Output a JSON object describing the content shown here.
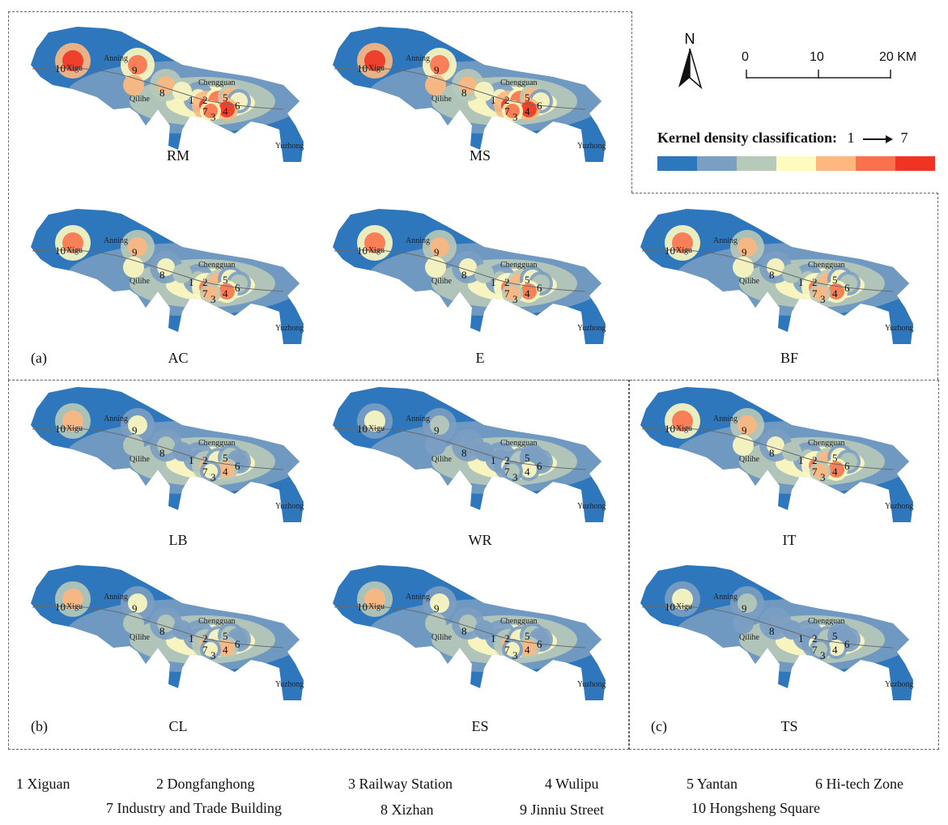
{
  "legend": {
    "title": "Kernel density classification:",
    "from": "1",
    "to": "7",
    "colors": [
      "#2f77bc",
      "#7b9fc2",
      "#b7c9b8",
      "#fffac0",
      "#fdb77f",
      "#f9724d",
      "#ef3423"
    ]
  },
  "scale": {
    "north": "N",
    "ticks": [
      "0",
      "10",
      "20 KM"
    ]
  },
  "groups": {
    "a": "(a)",
    "b": "(b)",
    "c": "(c)"
  },
  "places": {
    "xigu": "Xigu",
    "anning": "Anning",
    "qilihe": "Qilihe",
    "chengguan": "Chengguan",
    "yuzhong": "Yuzhong"
  },
  "maps": [
    {
      "id": "RM",
      "label": "RM",
      "intensity": 6
    },
    {
      "id": "MS",
      "label": "MS",
      "intensity": 6
    },
    {
      "id": "AC",
      "label": "AC",
      "intensity": 5
    },
    {
      "id": "E",
      "label": "E",
      "intensity": 5
    },
    {
      "id": "BF",
      "label": "BF",
      "intensity": 5
    },
    {
      "id": "LB",
      "label": "LB",
      "intensity": 4
    },
    {
      "id": "WR",
      "label": "WR",
      "intensity": 3
    },
    {
      "id": "IT",
      "label": "IT",
      "intensity": 5
    },
    {
      "id": "CL",
      "label": "CL",
      "intensity": 4
    },
    {
      "id": "ES",
      "label": "ES",
      "intensity": 4
    },
    {
      "id": "TS",
      "label": "TS",
      "intensity": 3
    }
  ],
  "footer": [
    "1  Xiguan",
    "2  Dongfanghong",
    "3  Railway Station",
    "4  Wulipu",
    "5  Yantan",
    "6  Hi-tech Zone",
    "7  Industry and Trade Building",
    "8  Xizhan",
    "9  Jinniu Street",
    "10  Hongsheng Square"
  ]
}
